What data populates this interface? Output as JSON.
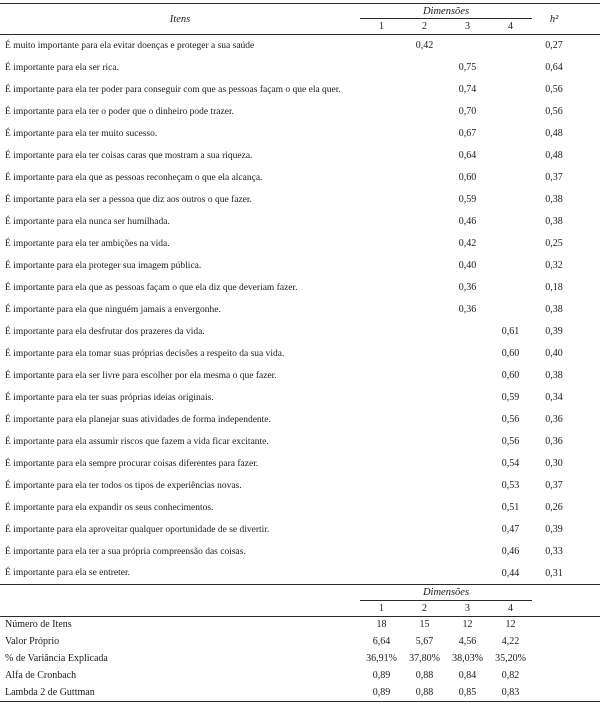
{
  "main_table": {
    "items_header": "Itens",
    "dimensions_header": "Dimensões",
    "dimension_columns": [
      "1",
      "2",
      "3",
      "4"
    ],
    "h2_header": "h²",
    "rows": [
      {
        "item": "É muito importante para ela evitar doenças e proteger a sua saúde",
        "d1": "",
        "d2": "0,42",
        "d3": "",
        "d4": "",
        "h2": "0,27"
      },
      {
        "item": "É importante para ela ser rica.",
        "d1": "",
        "d2": "",
        "d3": "0,75",
        "d4": "",
        "h2": "0,64"
      },
      {
        "item": "É importante para ela ter poder para conseguir com que as pessoas façam o que ela quer.",
        "d1": "",
        "d2": "",
        "d3": "0,74",
        "d4": "",
        "h2": "0,56"
      },
      {
        "item": "É importante para ela ter o poder que o dinheiro pode trazer.",
        "d1": "",
        "d2": "",
        "d3": "0,70",
        "d4": "",
        "h2": "0,56"
      },
      {
        "item": "É importante para ela ter muito sucesso.",
        "d1": "",
        "d2": "",
        "d3": "0,67",
        "d4": "",
        "h2": "0,48"
      },
      {
        "item": "É importante para ela ter coisas caras que mostram a sua riqueza.",
        "d1": "",
        "d2": "",
        "d3": "0,64",
        "d4": "",
        "h2": "0,48"
      },
      {
        "item": "É importante para ela que as pessoas reconheçam o que ela alcança.",
        "d1": "",
        "d2": "",
        "d3": "0,60",
        "d4": "",
        "h2": "0,37"
      },
      {
        "item": "É importante para ela ser a pessoa que diz aos outros o que fazer.",
        "d1": "",
        "d2": "",
        "d3": "0,59",
        "d4": "",
        "h2": "0,38"
      },
      {
        "item": "É importante para ela nunca ser humilhada.",
        "d1": "",
        "d2": "",
        "d3": "0,46",
        "d4": "",
        "h2": "0,38"
      },
      {
        "item": "É importante para ela ter ambições na vida.",
        "d1": "",
        "d2": "",
        "d3": "0,42",
        "d4": "",
        "h2": "0,25"
      },
      {
        "item": "É importante para ela proteger sua imagem pública.",
        "d1": "",
        "d2": "",
        "d3": "0,40",
        "d4": "",
        "h2": "0,32"
      },
      {
        "item": "É importante para ela que as pessoas façam o que ela diz que deveriam fazer.",
        "d1": "",
        "d2": "",
        "d3": "0,36",
        "d4": "",
        "h2": "0,18"
      },
      {
        "item": "É importante para ela que ninguém jamais a envergonhe.",
        "d1": "",
        "d2": "",
        "d3": "0,36",
        "d4": "",
        "h2": "0,38"
      },
      {
        "item": "É importante para ela desfrutar dos prazeres da vida.",
        "d1": "",
        "d2": "",
        "d3": "",
        "d4": "0,61",
        "h2": "0,39"
      },
      {
        "item": "É importante para ela tomar suas próprias decisões a respeito da sua vida.",
        "d1": "",
        "d2": "",
        "d3": "",
        "d4": "0,60",
        "h2": "0,40"
      },
      {
        "item": "É importante para ela ser livre para escolher por ela mesma o que fazer.",
        "d1": "",
        "d2": "",
        "d3": "",
        "d4": "0,60",
        "h2": "0,38"
      },
      {
        "item": "É importante para ela ter suas próprias ideias originais.",
        "d1": "",
        "d2": "",
        "d3": "",
        "d4": "0,59",
        "h2": "0,34"
      },
      {
        "item": "É importante para ela planejar suas atividades de forma independente.",
        "d1": "",
        "d2": "",
        "d3": "",
        "d4": "0,56",
        "h2": "0,36"
      },
      {
        "item": "É importante para ela assumir riscos que fazem a vida ficar excitante.",
        "d1": "",
        "d2": "",
        "d3": "",
        "d4": "0,56",
        "h2": "0,36"
      },
      {
        "item": "É importante para ela sempre procurar coisas diferentes para fazer.",
        "d1": "",
        "d2": "",
        "d3": "",
        "d4": "0,54",
        "h2": "0,30"
      },
      {
        "item": "É importante para ela ter todos os tipos de experiências novas.",
        "d1": "",
        "d2": "",
        "d3": "",
        "d4": "0,53",
        "h2": "0,37"
      },
      {
        "item": "É importante para ela expandir os seus conhecimentos.",
        "d1": "",
        "d2": "",
        "d3": "",
        "d4": "0,51",
        "h2": "0,26"
      },
      {
        "item": "É importante para ela aproveitar qualquer oportunidade de se divertir.",
        "d1": "",
        "d2": "",
        "d3": "",
        "d4": "0,47",
        "h2": "0,39"
      },
      {
        "item": "É importante para ela ter a sua própria compreensão das coisas.",
        "d1": "",
        "d2": "",
        "d3": "",
        "d4": "0,46",
        "h2": "0,33"
      },
      {
        "item": "É importante para ela se entreter.",
        "d1": "",
        "d2": "",
        "d3": "",
        "d4": "0,44",
        "h2": "0,31"
      }
    ]
  },
  "summary_table": {
    "dimensions_header": "Dimensões",
    "dimension_columns": [
      "1",
      "2",
      "3",
      "4"
    ],
    "rows": [
      {
        "label": "Número de Itens",
        "values": [
          "18",
          "15",
          "12",
          "12"
        ]
      },
      {
        "label": "Valor Próprio",
        "values": [
          "6,64",
          "5,67",
          "4,56",
          "4,22"
        ]
      },
      {
        "label": "% de Variância Explicada",
        "values": [
          "36,91%",
          "37,80%",
          "38,03%",
          "35,20%"
        ]
      },
      {
        "label": "Alfa de Cronbach",
        "values": [
          "0,89",
          "0,88",
          "0,84",
          "0,82"
        ]
      },
      {
        "label": "Lambda 2 de Guttman",
        "values": [
          "0,89",
          "0,88",
          "0,85",
          "0,83"
        ]
      }
    ]
  }
}
